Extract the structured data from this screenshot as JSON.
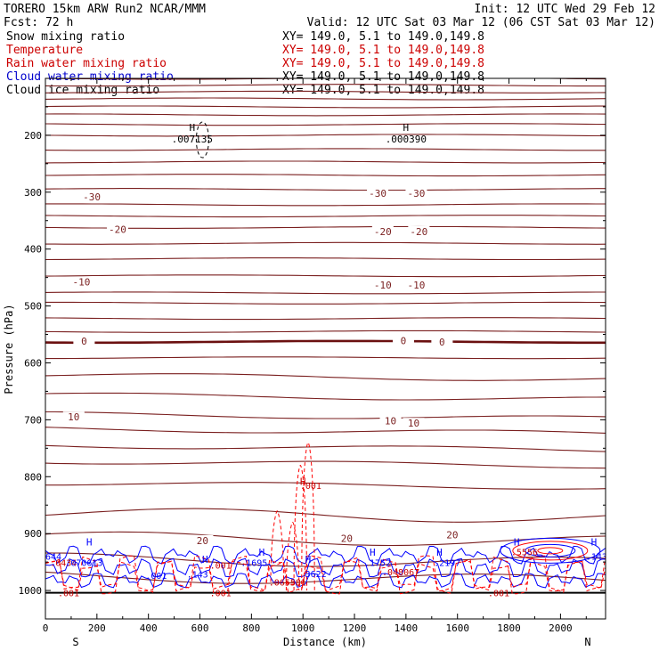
{
  "header": {
    "line1_left": "TORERO  15km ARW   Run2    NCAR/MMM",
    "line1_right": "Init: 12 UTC Wed 29 Feb 12",
    "line2_left": "Fcst:   72 h",
    "line2_right": "Valid: 12 UTC Sat 03 Mar 12 (06 CST Sat 03 Mar 12)"
  },
  "legend": [
    {
      "label": "Snow mixing ratio",
      "xy": "XY= 149.0,  5.1 to 149.0,149.8",
      "color": "#000000",
      "xy_color": "#000000"
    },
    {
      "label": "Temperature",
      "xy": "XY= 149.0,  5.1 to 149.0,149.8",
      "color": "#cc0000",
      "xy_color": "#cc0000"
    },
    {
      "label": "Rain water mixing ratio",
      "xy": "XY= 149.0,  5.1 to 149.0,149.8",
      "color": "#cc0000",
      "xy_color": "#cc0000"
    },
    {
      "label": "Cloud water mixing ratio",
      "xy": "XY= 149.0,  5.1 to 149.0,149.8",
      "color": "#0000cc",
      "xy_color": "#000000"
    },
    {
      "label": "Cloud ice mixing ratio",
      "xy": "XY= 149.0,  5.1 to 149.0,149.8",
      "color": "#000000",
      "xy_color": "#000000"
    }
  ],
  "colors": {
    "temperature": "#7a1f1f",
    "freezing": "#6b1010",
    "rain": "#ff0000",
    "rain_label": "#cc0000",
    "cloud_water": "#0000ff",
    "cloud_ice": "#000000",
    "axis": "#000000"
  },
  "chart_data": {
    "type": "cross-section",
    "xlabel": "Distance (km)",
    "ylabel": "Pressure (hPa)",
    "xlim": [
      0,
      2175
    ],
    "ylim": [
      1050,
      100
    ],
    "x_ticks": [
      0,
      200,
      400,
      600,
      800,
      1000,
      1200,
      1400,
      1600,
      1800,
      2000
    ],
    "y_ticks": [
      200,
      300,
      400,
      500,
      600,
      700,
      800,
      900,
      1000
    ],
    "x_end_labels": {
      "left": "S",
      "right": "N"
    },
    "temperature_isotherm_levels_hPa": [
      100,
      112,
      124,
      136,
      150,
      164,
      181,
      200,
      225,
      247,
      270,
      295,
      322,
      342,
      362,
      390,
      417,
      447,
      477,
      495,
      522,
      545,
      563,
      591,
      621,
      656,
      690,
      716,
      745,
      773,
      811,
      864,
      906,
      944,
      975
    ],
    "temperature_labels": [
      {
        "text": "-30",
        "x": 180,
        "p": 308
      },
      {
        "text": "-30",
        "x": 1290,
        "p": 302
      },
      {
        "text": "-30",
        "x": 1440,
        "p": 302
      },
      {
        "text": "-20",
        "x": 280,
        "p": 365
      },
      {
        "text": "-20",
        "x": 1310,
        "p": 369
      },
      {
        "text": "-20",
        "x": 1450,
        "p": 369
      },
      {
        "text": "-10",
        "x": 140,
        "p": 458
      },
      {
        "text": "-10",
        "x": 1310,
        "p": 463
      },
      {
        "text": "-10",
        "x": 1440,
        "p": 463
      },
      {
        "text": "0",
        "x": 150,
        "p": 562
      },
      {
        "text": "0",
        "x": 1390,
        "p": 561
      },
      {
        "text": "0",
        "x": 1540,
        "p": 563
      },
      {
        "text": "10",
        "x": 110,
        "p": 695
      },
      {
        "text": "10",
        "x": 1340,
        "p": 702
      },
      {
        "text": "10",
        "x": 1430,
        "p": 706
      },
      {
        "text": "20",
        "x": 610,
        "p": 912
      },
      {
        "text": "20",
        "x": 1170,
        "p": 908
      },
      {
        "text": "20",
        "x": 1580,
        "p": 902
      }
    ],
    "ice_maxima": [
      {
        "mark": "H",
        "value": ".007135",
        "x": 570,
        "p": 205
      },
      {
        "mark": "H",
        "value": ".000390",
        "x": 1400,
        "p": 205
      }
    ],
    "low_level_labels": [
      {
        "text": "644",
        "x": 0,
        "p": 940,
        "series": "cloud_water"
      },
      {
        "text": ".0434",
        "x": 70,
        "p": 951,
        "series": "rain"
      },
      {
        "text": ".070613",
        "x": 150,
        "p": 951,
        "series": "cloud_water"
      },
      {
        "text": ".001",
        "x": 430,
        "p": 973,
        "series": "cloud_water"
      },
      {
        "text": ".143",
        "x": 590,
        "p": 971,
        "series": "cloud_water"
      },
      {
        "text": ".001",
        "x": 680,
        "p": 955,
        "series": "rain"
      },
      {
        "text": ".1695",
        "x": 810,
        "p": 951,
        "series": "cloud_water"
      },
      {
        "text": ".065581",
        "x": 940,
        "p": 985,
        "series": "rain"
      },
      {
        "text": "3622",
        "x": 1050,
        "p": 970,
        "series": "cloud_water"
      },
      {
        "text": ".1752",
        "x": 1290,
        "p": 951,
        "series": "cloud_water"
      },
      {
        "text": ".048067",
        "x": 1380,
        "p": 967,
        "series": "rain"
      },
      {
        "text": ".2197",
        "x": 1560,
        "p": 951,
        "series": "cloud_water"
      },
      {
        "text": ".5556",
        "x": 1860,
        "p": 932,
        "series": "rain"
      },
      {
        "text": ".001",
        "x": 90,
        "p": 1004,
        "series": "rain"
      },
      {
        "text": ".001",
        "x": 680,
        "p": 1004,
        "series": "rain"
      },
      {
        "text": ".001",
        "x": 1760,
        "p": 1004,
        "series": "rain"
      },
      {
        "text": ".001",
        "x": 1030,
        "p": 815,
        "series": "rain"
      },
      {
        "text": ".143",
        "x": 2140,
        "p": 940,
        "series": "cloud_water"
      }
    ],
    "low_level_maxima": [
      {
        "mark": "H",
        "x": 170,
        "p": 915,
        "series": "cloud_water"
      },
      {
        "mark": "H",
        "x": 620,
        "p": 945,
        "series": "cloud_water"
      },
      {
        "mark": "H",
        "x": 840,
        "p": 933,
        "series": "cloud_water"
      },
      {
        "mark": "H",
        "x": 1020,
        "p": 945,
        "series": "cloud_water"
      },
      {
        "mark": "H",
        "x": 1270,
        "p": 933,
        "series": "cloud_water"
      },
      {
        "mark": "H",
        "x": 1530,
        "p": 933,
        "series": "cloud_water"
      },
      {
        "mark": "H",
        "x": 1830,
        "p": 915,
        "series": "cloud_water"
      },
      {
        "mark": "H",
        "x": 2130,
        "p": 915,
        "series": "cloud_water"
      },
      {
        "mark": "H",
        "x": 1000,
        "p": 808,
        "series": "rain"
      }
    ]
  }
}
